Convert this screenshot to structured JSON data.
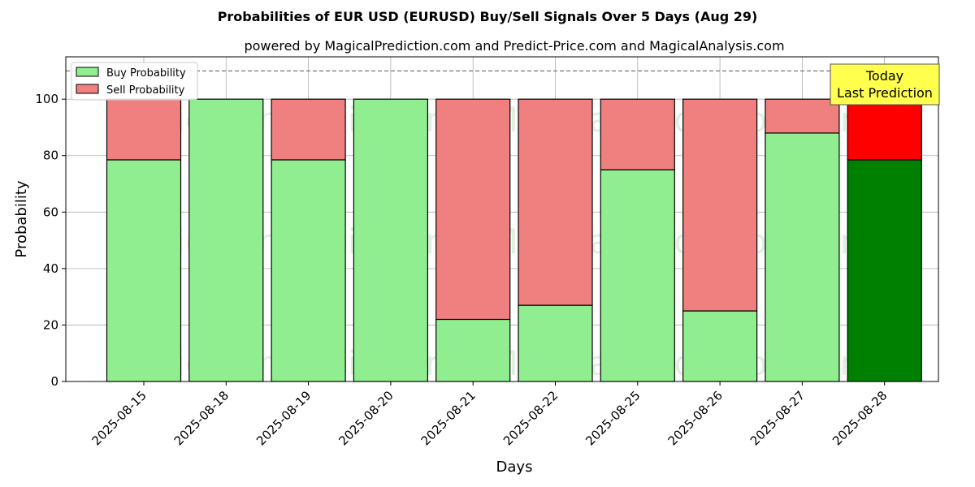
{
  "chart_data": {
    "type": "bar",
    "stacked": true,
    "title": "Probabilities of EUR USD (EURUSD) Buy/Sell Signals Over 5 Days (Aug 29)",
    "subtitle": "powered by MagicalPrediction.com and Predict-Price.com and MagicalAnalysis.com",
    "xlabel": "Days",
    "ylabel": "Probability",
    "ylim": [
      0,
      115
    ],
    "yticks": [
      0,
      20,
      40,
      60,
      80,
      100
    ],
    "grid": true,
    "legend_position": "top-left",
    "reference_line": 110,
    "categories": [
      "2025-08-15",
      "2025-08-18",
      "2025-08-19",
      "2025-08-20",
      "2025-08-21",
      "2025-08-22",
      "2025-08-25",
      "2025-08-26",
      "2025-08-27",
      "2025-08-28"
    ],
    "series": [
      {
        "name": "Buy Probability",
        "color": "#90ee90",
        "values": [
          78.5,
          100,
          78.5,
          100,
          22,
          27,
          75,
          25,
          88,
          78.5
        ]
      },
      {
        "name": "Sell Probability",
        "color": "#f08080",
        "values": [
          21.5,
          0,
          21.5,
          0,
          78,
          73,
          25,
          75,
          12,
          21.5
        ]
      }
    ],
    "highlight": {
      "index": 9,
      "buy_color": "#008000",
      "sell_color": "#ff0000",
      "annotation_lines": [
        "Today",
        "Last Prediction"
      ],
      "annotation_bg": "#ffff4d"
    },
    "watermarks": [
      "MagicalAnalysis.com",
      "MagicalPrediction.com"
    ]
  }
}
